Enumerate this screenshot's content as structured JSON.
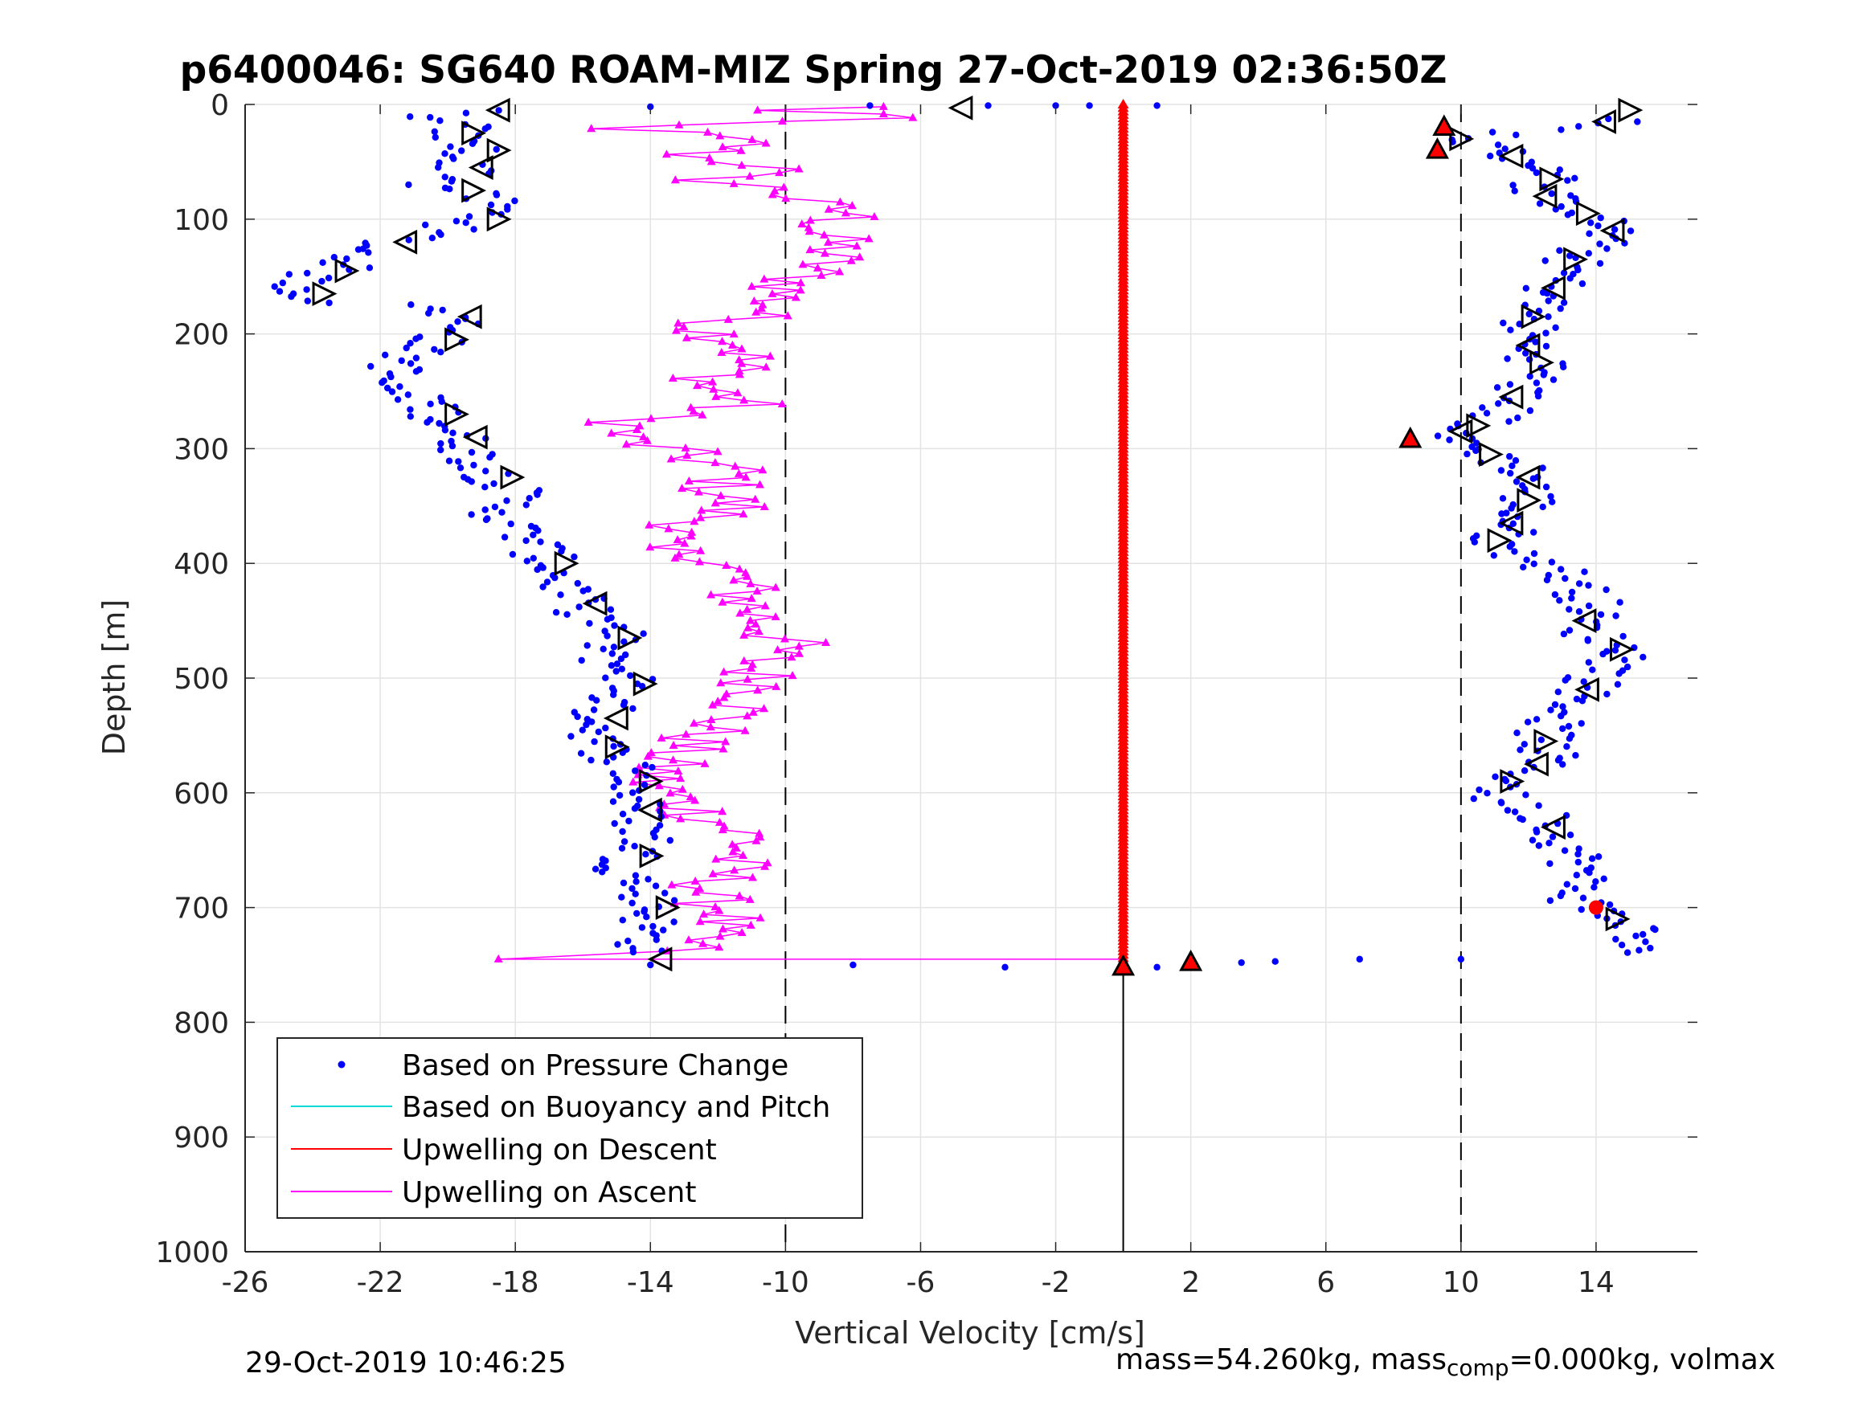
{
  "chart_data": {
    "type": "scatter",
    "title": "p6400046: SG640 ROAM-MIZ Spring 27-Oct-2019 02:36:50Z",
    "xlabel": "Vertical Velocity [cm/s]",
    "ylabel": "Depth [m]",
    "xlim": [
      -26,
      17
    ],
    "ylim": [
      0,
      1000
    ],
    "y_reversed": true,
    "xticks": [
      "-26",
      "-22",
      "-18",
      "-14",
      "-10",
      "-6",
      "-2",
      "2",
      "6",
      "10",
      "14"
    ],
    "yticks": [
      "0",
      "100",
      "200",
      "300",
      "400",
      "500",
      "600",
      "700",
      "800",
      "900",
      "1000"
    ],
    "grid": true,
    "legend_position": "bottom-left",
    "reference_lines": {
      "dashed_x": [
        -10,
        10
      ],
      "solid_x": [
        0
      ]
    },
    "series": [
      {
        "name": "Based on Pressure Change",
        "color": "#0000ff",
        "marker": "dot",
        "descent": [
          [
            -19,
            5
          ],
          [
            -21,
            12
          ],
          [
            -19.5,
            20
          ],
          [
            -20,
            30
          ],
          [
            -19,
            40
          ],
          [
            -20,
            50
          ],
          [
            -19,
            60
          ],
          [
            -20.5,
            70
          ],
          [
            -19,
            80
          ],
          [
            -18.5,
            90
          ],
          [
            -19,
            100
          ],
          [
            -21,
            115
          ],
          [
            -22.5,
            125
          ],
          [
            -23,
            140
          ],
          [
            -24.5,
            155
          ],
          [
            -24,
            170
          ],
          [
            -20,
            180
          ],
          [
            -19.5,
            195
          ],
          [
            -21,
            215
          ],
          [
            -22,
            245
          ],
          [
            -20.5,
            260
          ],
          [
            -20,
            280
          ],
          [
            -19.5,
            295
          ],
          [
            -19,
            315
          ],
          [
            -18,
            340
          ],
          [
            -18.5,
            360
          ],
          [
            -17.5,
            380
          ],
          [
            -17,
            400
          ],
          [
            -16.5,
            420
          ],
          [
            -16,
            440
          ],
          [
            -15,
            460
          ],
          [
            -15.5,
            480
          ],
          [
            -14.5,
            500
          ],
          [
            -15.5,
            530
          ],
          [
            -15.5,
            560
          ],
          [
            -14.5,
            580
          ],
          [
            -14.5,
            600
          ],
          [
            -14.5,
            615
          ],
          [
            -14,
            640
          ],
          [
            -14.8,
            665
          ],
          [
            -14,
            690
          ],
          [
            -14,
            710
          ],
          [
            -14.2,
            740
          ]
        ],
        "ascent": [
          [
            15,
            12
          ],
          [
            13,
            20
          ],
          [
            10,
            30
          ],
          [
            11.5,
            45
          ],
          [
            13,
            60
          ],
          [
            12,
            75
          ],
          [
            13.5,
            90
          ],
          [
            14.5,
            110
          ],
          [
            13.5,
            130
          ],
          [
            13,
            150
          ],
          [
            12.5,
            170
          ],
          [
            12,
            190
          ],
          [
            12,
            210
          ],
          [
            12.5,
            230
          ],
          [
            11.5,
            255
          ],
          [
            11,
            275
          ],
          [
            9.5,
            290
          ],
          [
            10.5,
            300
          ],
          [
            12,
            320
          ],
          [
            12,
            345
          ],
          [
            11.5,
            365
          ],
          [
            11,
            385
          ],
          [
            12.5,
            400
          ],
          [
            13.5,
            420
          ],
          [
            14,
            440
          ],
          [
            13.5,
            455
          ],
          [
            14.5,
            470
          ],
          [
            15,
            480
          ],
          [
            14,
            500
          ],
          [
            13.5,
            520
          ],
          [
            12.5,
            545
          ],
          [
            12.5,
            570
          ],
          [
            11.5,
            590
          ],
          [
            11,
            605
          ],
          [
            12.5,
            620
          ],
          [
            13,
            640
          ],
          [
            13.5,
            660
          ],
          [
            13.5,
            680
          ],
          [
            13.5,
            695
          ],
          [
            15,
            715
          ],
          [
            15.5,
            725
          ],
          [
            14.5,
            740
          ]
        ],
        "bottom": [
          [
            -14,
            750
          ],
          [
            -8,
            750
          ],
          [
            -3.5,
            752
          ],
          [
            0,
            753
          ],
          [
            1,
            752
          ],
          [
            2,
            750
          ],
          [
            3.5,
            748
          ],
          [
            4.5,
            747
          ],
          [
            7,
            745
          ],
          [
            10,
            745
          ]
        ]
      },
      {
        "name": "Based on Buoyancy and Pitch",
        "color": "#00d8d8",
        "values": []
      },
      {
        "name": "Upwelling on Descent",
        "color": "#ff0000",
        "x_constant": 0,
        "depth_range": [
          0,
          750
        ]
      },
      {
        "name": "Upwelling on Ascent",
        "color": "#ff00ff",
        "marker": "triangle",
        "values": [
          [
            -7.5,
            2
          ],
          [
            -10.5,
            5
          ],
          [
            -6,
            10
          ],
          [
            -15.5,
            20
          ],
          [
            -13,
            25
          ],
          [
            -11,
            35
          ],
          [
            -13,
            45
          ],
          [
            -10,
            55
          ],
          [
            -12.5,
            65
          ],
          [
            -10,
            75
          ],
          [
            -9.5,
            85
          ],
          [
            -8,
            95
          ],
          [
            -9,
            110
          ],
          [
            -8.5,
            125
          ],
          [
            -9,
            140
          ],
          [
            -10,
            160
          ],
          [
            -10.5,
            180
          ],
          [
            -12.5,
            195
          ],
          [
            -11,
            210
          ],
          [
            -11.5,
            230
          ],
          [
            -12.5,
            245
          ],
          [
            -11,
            260
          ],
          [
            -14.5,
            275
          ],
          [
            -15,
            290
          ],
          [
            -13,
            305
          ],
          [
            -11.5,
            320
          ],
          [
            -12,
            335
          ],
          [
            -11.5,
            350
          ],
          [
            -13,
            370
          ],
          [
            -14.5,
            385
          ],
          [
            -12,
            395
          ],
          [
            -11.5,
            415
          ],
          [
            -11,
            440
          ],
          [
            -10.5,
            455
          ],
          [
            -10,
            470
          ],
          [
            -11,
            490
          ],
          [
            -10.5,
            510
          ],
          [
            -11.5,
            530
          ],
          [
            -12.5,
            550
          ],
          [
            -13.5,
            570
          ],
          [
            -14,
            590
          ],
          [
            -13,
            610
          ],
          [
            -12,
            625
          ],
          [
            -11,
            640
          ],
          [
            -11.5,
            655
          ],
          [
            -12,
            675
          ],
          [
            -12.5,
            690
          ],
          [
            -11.5,
            705
          ],
          [
            -12.5,
            720
          ],
          [
            -13,
            735
          ],
          [
            -18.5,
            745
          ],
          [
            0,
            745
          ]
        ]
      }
    ],
    "markers": {
      "descent_triangles_depths": [
        5,
        25,
        40,
        55,
        75,
        100,
        120,
        145,
        165,
        185,
        205,
        270,
        290,
        325,
        400,
        435,
        465,
        505,
        535,
        560,
        590,
        615,
        655,
        700,
        745
      ],
      "ascent_triangles_depths": [
        5,
        15,
        30,
        45,
        65,
        80,
        95,
        110,
        135,
        160,
        185,
        210,
        225,
        255,
        280,
        285,
        305,
        325,
        345,
        365,
        380,
        450,
        475,
        510,
        555,
        575,
        590,
        630,
        710
      ],
      "red_triangles": [
        [
          9.5,
          20
        ],
        [
          9.3,
          40
        ],
        [
          8.5,
          292
        ],
        [
          2,
          748
        ],
        [
          0,
          752
        ]
      ],
      "red_dots": [
        [
          14,
          700
        ]
      ],
      "left_open_triangle": [
        -4.8,
        3
      ]
    }
  },
  "footer": {
    "timestamp": "29-Oct-2019 10:46:25",
    "mass_text": "mass=54.260kg, mass",
    "comp_sub": "comp",
    "mass_tail": "=0.000kg, volmax"
  }
}
